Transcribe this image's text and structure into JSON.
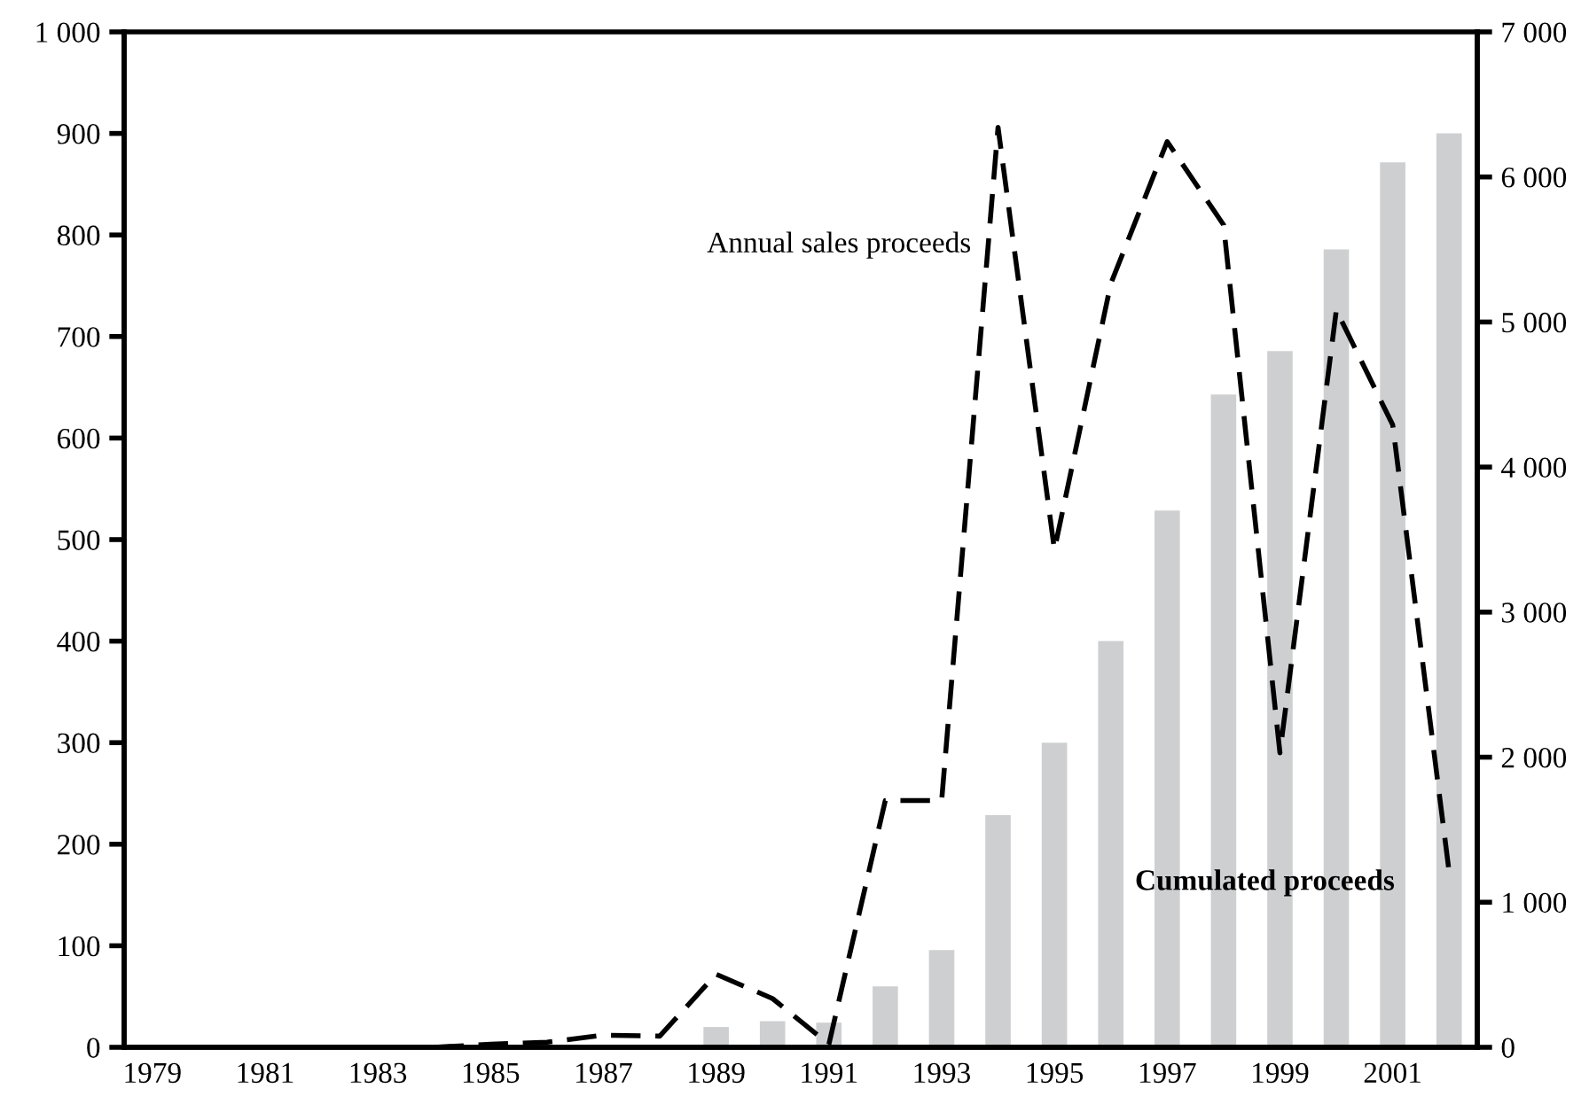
{
  "chart_data": {
    "type": "bar",
    "categories": [
      "1979",
      null,
      "1981",
      null,
      "1983",
      null,
      "1985",
      null,
      "1987",
      null,
      "1989",
      null,
      "1991",
      null,
      "1993",
      null,
      "1995",
      null,
      "1997",
      null,
      "1999",
      null,
      "2001",
      null
    ],
    "series": [
      {
        "name": "Cumulated proceeds",
        "axis": "y2",
        "color": "#cdcfd1",
        "values": [
          0,
          0,
          0,
          0,
          0,
          0,
          0,
          0,
          null,
          null,
          140,
          180,
          170,
          420,
          670,
          1600,
          2100,
          2800,
          3700,
          4500,
          4800,
          5500,
          6100,
          6300
        ]
      },
      {
        "name": "Annual sales proceeds",
        "type": "line",
        "color": "#000000",
        "line_style": "dashed",
        "values": [
          null,
          null,
          null,
          null,
          null,
          0,
          3,
          5,
          12,
          11,
          72,
          48,
          3,
          243,
          243,
          906,
          490,
          752,
          892,
          810,
          290,
          726,
          613,
          173
        ]
      }
    ],
    "ylim": [
      0,
      1000
    ],
    "yticks": [
      0,
      100,
      200,
      300,
      400,
      500,
      600,
      700,
      800,
      900,
      {
        "value": 1000,
        "label": "1 000"
      }
    ],
    "y2lim": [
      0,
      7000
    ],
    "y2ticks": [
      0,
      {
        "value": 1000,
        "label": "1 000"
      },
      {
        "value": 2000,
        "label": "2 000"
      },
      {
        "value": 3000,
        "label": "3 000"
      },
      {
        "value": 4000,
        "label": "4 000"
      },
      {
        "value": 5000,
        "label": "5 000"
      },
      {
        "value": 6000,
        "label": "6 000"
      },
      {
        "value": 7000,
        "label": "7 000"
      }
    ],
    "grid": false,
    "legend": false
  }
}
